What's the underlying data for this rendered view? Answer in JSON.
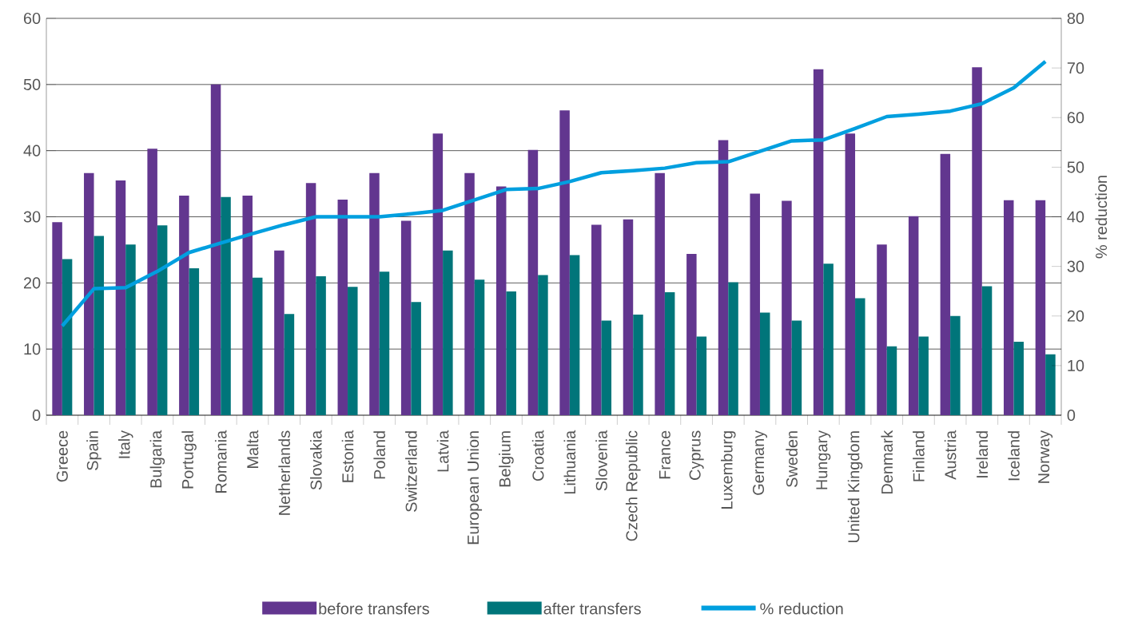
{
  "chart_data": {
    "type": "bar",
    "y2label": "% reduction",
    "categories": [
      "Greece",
      "Spain",
      "Italy",
      "Bulgaria",
      "Portugal",
      "Romania",
      "Malta",
      "Netherlands",
      "Slovakia",
      "Estonia",
      "Poland",
      "Switzerland",
      "Latvia",
      "European Union",
      "Belgium",
      "Croatia",
      "Lithuania",
      "Slovenia",
      "Czech Republic",
      "France",
      "Cyprus",
      "Luxemburg",
      "Germany",
      "Sweden",
      "Hungary",
      "United Kingdom",
      "Denmark",
      "Finland",
      "Austria",
      "Ireland",
      "Iceland",
      "Norway"
    ],
    "series": [
      {
        "name": "before transfers",
        "color": "#62368f",
        "values": [
          29.2,
          36.6,
          35.5,
          40.3,
          33.2,
          50.0,
          33.2,
          24.9,
          35.1,
          32.6,
          36.6,
          29.4,
          42.6,
          36.6,
          34.6,
          40.1,
          46.1,
          28.8,
          29.6,
          36.6,
          24.4,
          41.6,
          33.5,
          32.4,
          52.3,
          42.6,
          25.8,
          30.1,
          39.5,
          52.6,
          32.5,
          32.5
        ]
      },
      {
        "name": "after transfers",
        "color": "#00757a",
        "values": [
          23.6,
          27.1,
          25.8,
          28.7,
          22.2,
          33.0,
          20.8,
          15.3,
          21.0,
          19.4,
          21.7,
          17.1,
          24.9,
          20.5,
          18.7,
          21.2,
          24.2,
          14.3,
          15.2,
          18.6,
          11.9,
          20.1,
          15.5,
          14.3,
          22.9,
          17.7,
          10.4,
          11.9,
          15.0,
          19.5,
          11.1,
          9.2
        ]
      },
      {
        "name": "% reduction",
        "type": "line",
        "axis": "y2",
        "color": "#009fdf",
        "values": [
          18,
          25.5,
          25.7,
          29,
          32.8,
          34.7,
          36.6,
          38.4,
          40,
          40,
          40,
          40.6,
          41.3,
          43.4,
          45.5,
          45.7,
          47.1,
          48.9,
          49.3,
          49.8,
          50.9,
          51.1,
          53.2,
          55.3,
          55.5,
          57.8,
          60.2,
          60.7,
          61.3,
          62.8,
          66,
          71.3
        ]
      }
    ],
    "ylim": [
      0,
      60
    ],
    "yticks": [
      0,
      10,
      20,
      30,
      40,
      50,
      60
    ],
    "y2lim": [
      0,
      80
    ],
    "y2ticks": [
      0,
      10,
      20,
      30,
      40,
      50,
      60,
      70,
      80
    ],
    "grid": "y",
    "legend": "bottom",
    "marker": "none"
  }
}
